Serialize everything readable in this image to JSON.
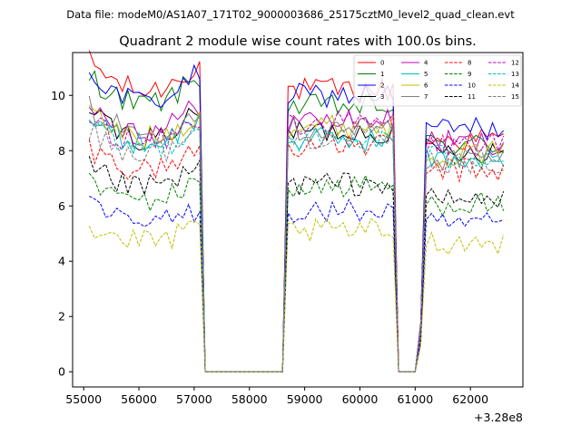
{
  "suptitle": "Data file: modeM0/AS1A07_171T02_9000003686_25175cztM0_level2_quad_clean.evt",
  "chart_data": {
    "type": "line",
    "title": "Quadrant 2 module wise count rates with 100.0s bins.",
    "xlabel": "",
    "ylabel": "",
    "x_offset_label": "+3.28e8",
    "xlim": [
      54800,
      62950
    ],
    "ylim": [
      -0.55,
      11.55
    ],
    "xticks": [
      55000,
      56000,
      57000,
      58000,
      59000,
      60000,
      61000,
      62000
    ],
    "xtick_labels": [
      "55000",
      "56000",
      "57000",
      "58000",
      "59000",
      "60000",
      "61000",
      "62000"
    ],
    "yticks": [
      0,
      2,
      4,
      6,
      8,
      10
    ],
    "ytick_labels": [
      "0",
      "2",
      "4",
      "6",
      "8",
      "10"
    ],
    "legend": {
      "placement": "top-right",
      "ncol": 4
    },
    "x_start": 55100,
    "x_step": 100,
    "gap_start": 57200,
    "gap_end": 58600,
    "segments": [
      {
        "from": 55100,
        "to": 57100
      },
      {
        "from": 58700,
        "to": 60600
      },
      {
        "from": 61200,
        "to": 62600
      }
    ],
    "series": [
      {
        "name": "0",
        "color": "#ff0000",
        "dash": "solid",
        "levels": [
          10.8,
          10.2,
          8.4
        ]
      },
      {
        "name": "1",
        "color": "#008000",
        "dash": "solid",
        "levels": [
          10.3,
          9.6,
          8.2
        ]
      },
      {
        "name": "2",
        "color": "#0000ff",
        "dash": "solid",
        "levels": [
          10.4,
          10.0,
          8.8
        ]
      },
      {
        "name": "3",
        "color": "#000000",
        "dash": "solid",
        "levels": [
          9.0,
          8.7,
          8.0
        ]
      },
      {
        "name": "4",
        "color": "#bf00bf",
        "dash": "solid",
        "levels": [
          9.3,
          9.1,
          8.3
        ]
      },
      {
        "name": "5",
        "color": "#00bfbf",
        "dash": "solid",
        "levels": [
          8.8,
          8.4,
          7.7
        ]
      },
      {
        "name": "6",
        "color": "#bfbf00",
        "dash": "solid",
        "levels": [
          9.0,
          8.9,
          7.9
        ]
      },
      {
        "name": "7",
        "color": "#808080",
        "dash": "solid",
        "levels": [
          9.2,
          8.8,
          7.7
        ]
      },
      {
        "name": "8",
        "color": "#ff0000",
        "dash": "dashed",
        "levels": [
          7.8,
          8.2,
          7.3
        ]
      },
      {
        "name": "9",
        "color": "#008000",
        "dash": "dashed",
        "levels": [
          6.6,
          6.7,
          6.1
        ]
      },
      {
        "name": "10",
        "color": "#0000ff",
        "dash": "dashed",
        "levels": [
          5.7,
          5.8,
          5.3
        ]
      },
      {
        "name": "11",
        "color": "#000000",
        "dash": "dashed",
        "levels": [
          7.1,
          6.8,
          6.2
        ]
      },
      {
        "name": "12",
        "color": "#bf00bf",
        "dash": "dashed",
        "levels": [
          8.8,
          9.0,
          8.2
        ]
      },
      {
        "name": "13",
        "color": "#00bfbf",
        "dash": "dashed",
        "levels": [
          8.6,
          8.4,
          7.8
        ]
      },
      {
        "name": "14",
        "color": "#bfbf00",
        "dash": "dashed",
        "levels": [
          5.0,
          5.1,
          4.7
        ]
      },
      {
        "name": "15",
        "color": "#808080",
        "dash": "dashed",
        "levels": [
          8.4,
          8.5,
          7.6
        ]
      }
    ]
  }
}
